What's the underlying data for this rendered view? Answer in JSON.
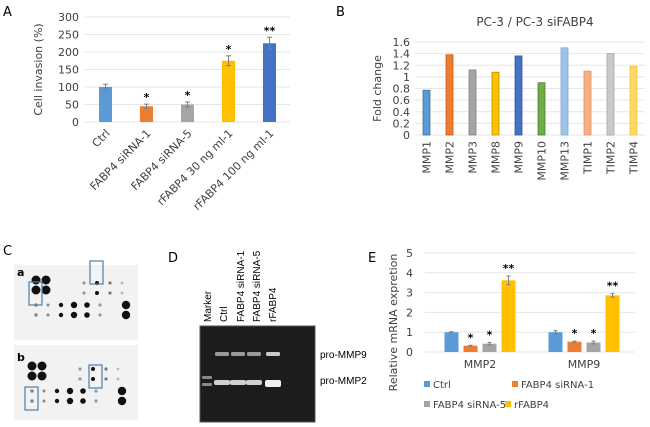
{
  "panels": {
    "A": "A",
    "B": "B",
    "C": "C",
    "D": "D",
    "E": "E"
  },
  "chart_data": [
    {
      "id": "A",
      "type": "bar",
      "title": "",
      "xlabel": "",
      "ylabel": "Cell invasion (%)",
      "ylim": [
        0,
        300
      ],
      "yticks": [
        0,
        50,
        100,
        150,
        200,
        250,
        300
      ],
      "grid": true,
      "categories": [
        "Ctrl",
        "FABP4 siRNA-1",
        "FABP4 siRNA-5",
        "rFABP4 30 ng ml-1",
        "rFABP4 100 ng ml-1"
      ],
      "values": [
        100,
        45,
        50,
        175,
        225
      ],
      "errors": [
        8,
        6,
        7,
        14,
        17
      ],
      "colors": [
        "#5b9bd5",
        "#ed7d31",
        "#a5a5a5",
        "#ffc000",
        "#4472c4"
      ],
      "annotations": [
        "",
        "*",
        "*",
        "*",
        "**"
      ]
    },
    {
      "id": "B",
      "type": "bar",
      "title": "PC-3 / PC-3 siFABP4",
      "xlabel": "",
      "ylabel": "Fold change",
      "ylim": [
        0,
        1.6
      ],
      "yticks": [
        0,
        0.2,
        0.4,
        0.6,
        0.8,
        1,
        1.2,
        1.4,
        1.6
      ],
      "grid": true,
      "categories": [
        "MMP1",
        "MMP2",
        "MMP3",
        "MMP8",
        "MMP9",
        "MMP10",
        "MMP13",
        "TIMP1",
        "TIMP2",
        "TIMP4"
      ],
      "values": [
        0.77,
        1.38,
        1.12,
        1.08,
        1.36,
        0.9,
        1.5,
        1.1,
        1.4,
        1.18
      ],
      "colors": [
        "#5b9bd5",
        "#ed7d31",
        "#a5a5a5",
        "#ffc000",
        "#4472c4",
        "#70ad47",
        "#9dc3e6",
        "#f4b183",
        "#c9c9c9",
        "#ffd966"
      ],
      "edge_colors": [
        "#41719c",
        "#c55a11",
        "#7f7f7f",
        "#bf9000",
        "#2f5597",
        "#507e32",
        "#7fa7d6",
        "#e4916a",
        "#a6a6a6",
        "#f0c040"
      ]
    },
    {
      "id": "E",
      "type": "bar",
      "title": "",
      "xlabel": "",
      "ylabel": "Relative mRNA expretion",
      "ylim": [
        0,
        5
      ],
      "yticks": [
        0,
        1,
        2,
        3,
        4,
        5
      ],
      "grid": true,
      "categories": [
        "MMP2",
        "MMP9"
      ],
      "series": [
        {
          "name": "Ctrl",
          "color": "#5b9bd5",
          "values": [
            1.0,
            1.0
          ],
          "errors": [
            0.03,
            0.08
          ],
          "annotations": [
            "",
            ""
          ]
        },
        {
          "name": "FABP4 siRNA-1",
          "color": "#ed7d31",
          "values": [
            0.32,
            0.52
          ],
          "errors": [
            0.02,
            0.03
          ],
          "annotations": [
            "*",
            "*"
          ]
        },
        {
          "name": "FABP4 siRNA-5",
          "color": "#a5a5a5",
          "values": [
            0.42,
            0.48
          ],
          "errors": [
            0.06,
            0.07
          ],
          "annotations": [
            "*",
            "*"
          ]
        },
        {
          "name": "rFABP4",
          "color": "#ffc000",
          "values": [
            3.62,
            2.86
          ],
          "errors": [
            0.22,
            0.09
          ],
          "annotations": [
            "**",
            "**"
          ]
        }
      ],
      "legend": "bottom"
    }
  ],
  "panelC": {
    "sub_labels": [
      "a",
      "b"
    ]
  },
  "panelD": {
    "lanes": [
      "Marker",
      "Ctrl",
      "FABP4 siRNA-1",
      "FABP4 siRNA-5",
      "rFABP4"
    ],
    "bands": [
      "pro-MMP9",
      "pro-MMP2"
    ]
  }
}
